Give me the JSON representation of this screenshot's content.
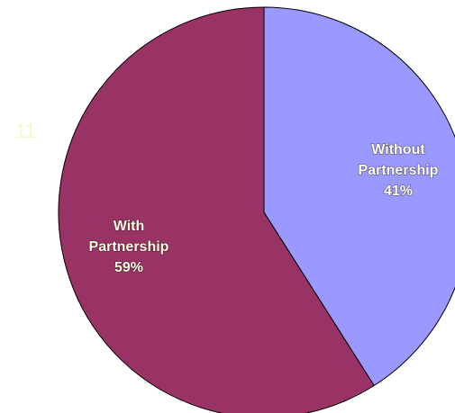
{
  "page_number": "11",
  "chart_data": {
    "type": "pie",
    "slices": [
      {
        "label_line1": "Without",
        "label_line2": "Partnership",
        "percent_label": "41%",
        "value": 41,
        "color": "#9999ff"
      },
      {
        "label_line1": "With",
        "label_line2": "Partnership",
        "percent_label": "59%",
        "value": 59,
        "color": "#993366"
      }
    ],
    "start": "12 o'clock",
    "direction": "clockwise",
    "legend": "none",
    "title": ""
  }
}
